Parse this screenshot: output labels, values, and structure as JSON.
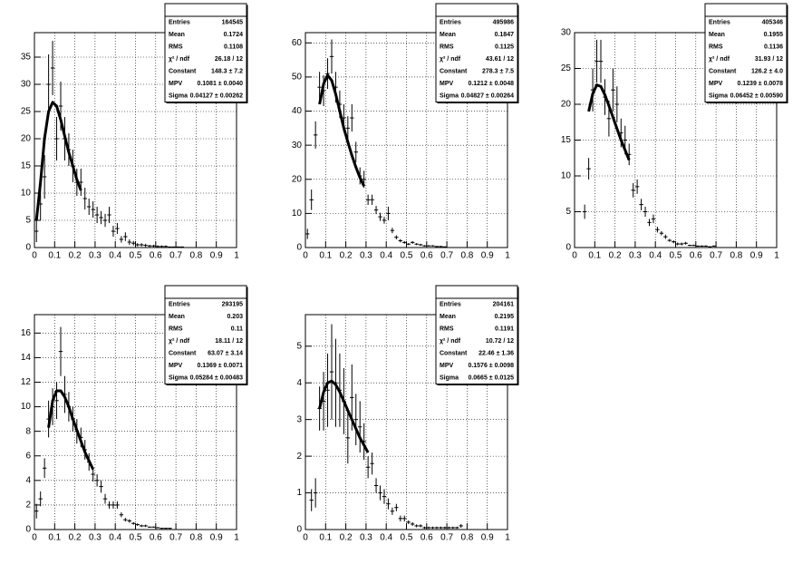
{
  "chart_data": [
    {
      "type": "errorbar",
      "x": [
        0.01,
        0.03,
        0.05,
        0.07,
        0.09,
        0.11,
        0.13,
        0.15,
        0.17,
        0.19,
        0.21,
        0.23,
        0.25,
        0.27,
        0.29,
        0.31,
        0.33,
        0.35,
        0.37,
        0.39,
        0.41,
        0.43,
        0.45,
        0.47,
        0.49,
        0.51,
        0.53,
        0.55,
        0.57,
        0.59,
        0.61,
        0.63,
        0.65,
        0.67,
        0.69,
        0.71,
        0.73
      ],
      "values": [
        3,
        8,
        13,
        30,
        33,
        20,
        26,
        20,
        18,
        15,
        12,
        12,
        9,
        7.5,
        7,
        6,
        5.5,
        5,
        6,
        3,
        3.5,
        1.5,
        2,
        1,
        0.8,
        0.5,
        0.5,
        0.4,
        0.3,
        0.3,
        0.2,
        0.2,
        0.2,
        0.1,
        0.1,
        0.1,
        0.1
      ],
      "errors": [
        2,
        3,
        4,
        5.5,
        5,
        4,
        4.5,
        4,
        3,
        3,
        2.5,
        2.5,
        2,
        1.5,
        1.5,
        1.5,
        1.2,
        1.2,
        1.5,
        1,
        1,
        0.6,
        0.8,
        0.5,
        0.4,
        0.3,
        0.3,
        0.3,
        0.2,
        0.2,
        0.2,
        0.2,
        0.2,
        0.1,
        0.1,
        0.1,
        0.1
      ],
      "fit": {
        "x": [
          0.01,
          0.03,
          0.05,
          0.07,
          0.09,
          0.11,
          0.13,
          0.15,
          0.17,
          0.19,
          0.21,
          0.23
        ],
        "values": [
          5,
          12,
          20,
          25,
          26.7,
          26,
          23.5,
          20.5,
          17.5,
          15,
          12.5,
          10.5
        ]
      },
      "xlim": [
        0,
        1
      ],
      "xticks": [
        0,
        0.1,
        0.2,
        0.3,
        0.4,
        0.5,
        0.6,
        0.7,
        0.8,
        0.9,
        1
      ],
      "ylim": [
        0,
        39.5
      ],
      "yticks": [
        0,
        5,
        10,
        15,
        20,
        25,
        30,
        35
      ],
      "grid": true,
      "stats": [
        {
          "label": "Entries",
          "value": "164545"
        },
        {
          "label": "Mean",
          "value": "0.1724"
        },
        {
          "label": "RMS",
          "value": "0.1108"
        },
        {
          "label": "χ² / ndf",
          "value": "26.18 / 12"
        },
        {
          "label": "Constant",
          "value": "148.3 ± 7.2"
        },
        {
          "label": "MPV",
          "value": "0.1081 ± 0.0040"
        },
        {
          "label": "Sigma",
          "value": "0.04127 ± 0.00262"
        }
      ]
    },
    {
      "type": "errorbar",
      "x": [
        0.01,
        0.03,
        0.05,
        0.07,
        0.09,
        0.11,
        0.13,
        0.15,
        0.17,
        0.19,
        0.21,
        0.23,
        0.25,
        0.27,
        0.29,
        0.31,
        0.33,
        0.35,
        0.37,
        0.39,
        0.41,
        0.43,
        0.45,
        0.47,
        0.49,
        0.51,
        0.53,
        0.55,
        0.57,
        0.59,
        0.61,
        0.63,
        0.65,
        0.67,
        0.69
      ],
      "values": [
        4,
        14,
        33,
        47,
        46,
        51,
        56,
        47,
        42,
        38,
        35,
        38,
        28,
        21,
        20,
        14,
        14,
        11,
        9,
        8,
        10,
        5,
        3,
        2,
        1.5,
        1,
        1.5,
        1,
        0.8,
        0.5,
        0.5,
        0.5,
        0.3,
        0.3,
        0.2
      ],
      "errors": [
        1.5,
        3,
        4,
        4.5,
        4.5,
        4.5,
        5,
        4.5,
        4,
        4,
        3.5,
        4,
        3,
        2.5,
        2.5,
        1.5,
        1.5,
        1.2,
        1.2,
        1,
        2,
        0.8,
        0.6,
        0.5,
        0.4,
        0.3,
        0.4,
        0.3,
        0.3,
        0.2,
        0.2,
        0.2,
        0.2,
        0.2,
        0.1
      ],
      "fit": {
        "x": [
          0.07,
          0.09,
          0.11,
          0.13,
          0.15,
          0.17,
          0.19,
          0.21,
          0.23,
          0.25,
          0.27,
          0.29
        ],
        "values": [
          42,
          48,
          50.5,
          49,
          45,
          40,
          35,
          31,
          27,
          23.5,
          20.5,
          18
        ]
      },
      "xlim": [
        0,
        1
      ],
      "xticks": [
        0,
        0.1,
        0.2,
        0.3,
        0.4,
        0.5,
        0.6,
        0.7,
        0.8,
        0.9,
        1
      ],
      "ylim": [
        0,
        63
      ],
      "yticks": [
        0,
        10,
        20,
        30,
        40,
        50,
        60
      ],
      "grid": true,
      "stats": [
        {
          "label": "Entries",
          "value": "495986"
        },
        {
          "label": "Mean",
          "value": "0.1847"
        },
        {
          "label": "RMS",
          "value": "0.1125"
        },
        {
          "label": "χ² / ndf",
          "value": "43.61 / 12"
        },
        {
          "label": "Constant",
          "value": "278.3 ± 7.5"
        },
        {
          "label": "MPV",
          "value": "0.1212 ± 0.0048"
        },
        {
          "label": "Sigma",
          "value": "0.04827 ± 0.00264"
        }
      ]
    },
    {
      "type": "errorbar",
      "x": [
        0.05,
        0.07,
        0.09,
        0.11,
        0.13,
        0.15,
        0.17,
        0.19,
        0.21,
        0.23,
        0.25,
        0.27,
        0.29,
        0.31,
        0.33,
        0.35,
        0.37,
        0.39,
        0.41,
        0.43,
        0.45,
        0.47,
        0.49,
        0.51,
        0.53,
        0.55,
        0.57,
        0.59,
        0.61,
        0.63,
        0.65,
        0.67,
        0.69
      ],
      "values": [
        5,
        11,
        22,
        26,
        26,
        21,
        18,
        22,
        20,
        16,
        15,
        13,
        8,
        8.5,
        6,
        5,
        3.5,
        4,
        2.5,
        2,
        1.5,
        1,
        0.8,
        0.5,
        0.5,
        0.6,
        0.3,
        0.3,
        0.2,
        0.2,
        0.2,
        0.1,
        0.2
      ],
      "errors": [
        1,
        1.5,
        3,
        3,
        3,
        2.5,
        2.5,
        3,
        2.5,
        2,
        2,
        1.5,
        1,
        1,
        0.8,
        0.7,
        0.5,
        0.6,
        0.4,
        0.3,
        0.3,
        0.2,
        0.2,
        0.2,
        0.2,
        0.2,
        0.1,
        0.1,
        0.1,
        0.1,
        0.1,
        0.1,
        0.1
      ],
      "fit": {
        "x": [
          0.07,
          0.09,
          0.11,
          0.13,
          0.15,
          0.17,
          0.19,
          0.21,
          0.23,
          0.25,
          0.27
        ],
        "values": [
          19,
          21.5,
          22.7,
          22.5,
          21.3,
          19.8,
          18.2,
          16.6,
          15,
          13.6,
          12.2
        ]
      },
      "xlim": [
        0,
        1
      ],
      "xticks": [
        0,
        0.1,
        0.2,
        0.3,
        0.4,
        0.5,
        0.6,
        0.7,
        0.8,
        0.9,
        1
      ],
      "ylim": [
        0,
        30
      ],
      "yticks": [
        0,
        5,
        10,
        15,
        20,
        25,
        30
      ],
      "grid": true,
      "stats": [
        {
          "label": "Entries",
          "value": "405346"
        },
        {
          "label": "Mean",
          "value": "0.1955"
        },
        {
          "label": "RMS",
          "value": "0.1136"
        },
        {
          "label": "χ² / ndf",
          "value": "31.93 / 12"
        },
        {
          "label": "Constant",
          "value": "126.2 ± 4.0"
        },
        {
          "label": "MPV",
          "value": "0.1239 ± 0.0078"
        },
        {
          "label": "Sigma",
          "value": "0.06452 ± 0.00590"
        }
      ]
    },
    {
      "type": "errorbar",
      "x": [
        0.01,
        0.03,
        0.05,
        0.07,
        0.09,
        0.11,
        0.13,
        0.15,
        0.17,
        0.19,
        0.21,
        0.23,
        0.25,
        0.27,
        0.29,
        0.31,
        0.33,
        0.35,
        0.37,
        0.39,
        0.41,
        0.43,
        0.45,
        0.47,
        0.49,
        0.51,
        0.53,
        0.55,
        0.57,
        0.59,
        0.61,
        0.63,
        0.65,
        0.67
      ],
      "values": [
        1.5,
        2.5,
        5,
        9,
        10,
        10.5,
        14.5,
        11,
        10,
        9,
        8,
        7.5,
        6.5,
        5.5,
        4.5,
        4,
        3.5,
        2.5,
        2,
        2,
        2,
        1.2,
        0.8,
        0.7,
        0.5,
        0.4,
        0.3,
        0.3,
        0.2,
        0.2,
        0.15,
        0.1,
        0.1,
        0.1
      ],
      "errors": [
        0.6,
        0.6,
        0.8,
        1.5,
        1.5,
        1.5,
        2,
        1.5,
        1.2,
        1,
        1,
        0.8,
        0.8,
        0.7,
        0.6,
        0.5,
        0.5,
        0.4,
        0.3,
        0.3,
        0.3,
        0.2,
        0.15,
        0.15,
        0.1,
        0.1,
        0.1,
        0.1,
        0.05,
        0.05,
        0.05,
        0.05,
        0.05,
        0.05
      ],
      "fit": {
        "x": [
          0.07,
          0.09,
          0.11,
          0.13,
          0.15,
          0.17,
          0.19,
          0.21,
          0.23,
          0.25,
          0.27,
          0.29
        ],
        "values": [
          8.3,
          10.5,
          11.3,
          11.3,
          10.8,
          10,
          9,
          8.1,
          7.2,
          6.3,
          5.6,
          4.9
        ]
      },
      "xlim": [
        0,
        1
      ],
      "xticks": [
        0,
        0.1,
        0.2,
        0.3,
        0.4,
        0.5,
        0.6,
        0.7,
        0.8,
        0.9,
        1
      ],
      "ylim": [
        0,
        17.5
      ],
      "yticks": [
        0,
        2,
        4,
        6,
        8,
        10,
        12,
        14,
        16
      ],
      "grid": true,
      "stats": [
        {
          "label": "Entries",
          "value": "293195"
        },
        {
          "label": "Mean",
          "value": "0.203"
        },
        {
          "label": "RMS",
          "value": "0.11"
        },
        {
          "label": "χ² / ndf",
          "value": "18.11 / 12"
        },
        {
          "label": "Constant",
          "value": "63.07 ± 3.14"
        },
        {
          "label": "MPV",
          "value": "0.1369 ± 0.0071"
        },
        {
          "label": "Sigma",
          "value": "0.05284 ± 0.00483"
        }
      ]
    },
    {
      "type": "errorbar",
      "x": [
        0.03,
        0.05,
        0.07,
        0.09,
        0.11,
        0.13,
        0.15,
        0.17,
        0.19,
        0.21,
        0.23,
        0.25,
        0.27,
        0.29,
        0.31,
        0.33,
        0.35,
        0.37,
        0.39,
        0.41,
        0.43,
        0.45,
        0.47,
        0.49,
        0.51,
        0.53,
        0.55,
        0.57,
        0.59,
        0.61,
        0.63,
        0.65,
        0.67,
        0.69,
        0.71,
        0.73,
        0.75,
        0.77
      ],
      "values": [
        0.8,
        1.0,
        3.3,
        3.5,
        3.8,
        4.3,
        4.0,
        3.8,
        3.5,
        2.5,
        3.6,
        3.0,
        2.8,
        2.4,
        1.7,
        1.8,
        1.2,
        1.0,
        0.9,
        0.7,
        0.5,
        0.6,
        0.3,
        0.3,
        0.2,
        0.15,
        0.1,
        0.1,
        0.05,
        0.05,
        0.05,
        0.05,
        0.05,
        0.05,
        0.05,
        0.05,
        0.05,
        0.1
      ],
      "errors": [
        0.3,
        0.4,
        0.6,
        0.8,
        1,
        1.3,
        1.2,
        1,
        0.9,
        0.7,
        0.9,
        0.7,
        0.7,
        0.5,
        0.3,
        0.3,
        0.2,
        0.2,
        0.2,
        0.15,
        0.1,
        0.1,
        0.08,
        0.08,
        0.05,
        0.05,
        0.04,
        0.04,
        0.03,
        0.03,
        0.03,
        0.03,
        0.03,
        0.03,
        0.03,
        0.03,
        0.03,
        0.05
      ],
      "fit": {
        "x": [
          0.07,
          0.09,
          0.11,
          0.13,
          0.15,
          0.17,
          0.19,
          0.21,
          0.23,
          0.25,
          0.27,
          0.29,
          0.31
        ],
        "values": [
          3.3,
          3.75,
          4.0,
          4.05,
          3.95,
          3.75,
          3.5,
          3.25,
          3.0,
          2.75,
          2.5,
          2.3,
          2.1
        ]
      },
      "xlim": [
        0,
        1
      ],
      "xticks": [
        0,
        0.1,
        0.2,
        0.3,
        0.4,
        0.5,
        0.6,
        0.7,
        0.8,
        0.9,
        1
      ],
      "ylim": [
        0,
        5.86
      ],
      "yticks": [
        0,
        1,
        2,
        3,
        4,
        5
      ],
      "grid": true,
      "stats": [
        {
          "label": "Entries",
          "value": "204161"
        },
        {
          "label": "Mean",
          "value": "0.2195"
        },
        {
          "label": "RMS",
          "value": "0.1191"
        },
        {
          "label": "χ² / ndf",
          "value": "10.72 / 12"
        },
        {
          "label": "Constant",
          "value": "22.46 ± 1.36"
        },
        {
          "label": "MPV",
          "value": "0.1576 ± 0.0098"
        },
        {
          "label": "Sigma",
          "value": "0.0665 ± 0.0125"
        }
      ]
    }
  ]
}
